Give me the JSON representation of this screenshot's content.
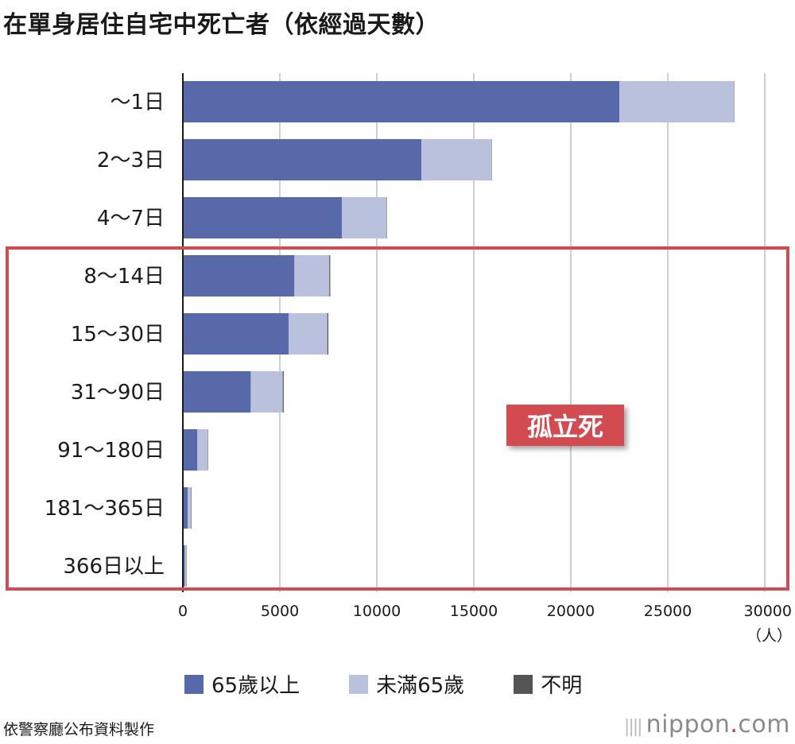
{
  "title": "在單身居住自宅中死亡者（依經過天數）",
  "chart_data": {
    "type": "bar",
    "orientation": "horizontal",
    "stacked": true,
    "title": "在單身居住自宅中死亡者（依經過天數）",
    "categories": [
      "～1日",
      "2～3日",
      "4～7日",
      "8～14日",
      "15～30日",
      "31～90日",
      "91～180日",
      "181～365日",
      "366日以上"
    ],
    "series": [
      {
        "name": "65歲以上",
        "color": "#5769a8",
        "values": [
          22500,
          12300,
          8200,
          5750,
          5450,
          3500,
          750,
          250,
          100
        ]
      },
      {
        "name": "未滿65歲",
        "color": "#b9c1dd",
        "values": [
          5900,
          3600,
          2300,
          1800,
          2000,
          1650,
          530,
          180,
          70
        ]
      },
      {
        "name": "不明",
        "color": "#555555",
        "values": [
          20,
          20,
          20,
          50,
          50,
          50,
          10,
          5,
          5
        ]
      }
    ],
    "x_ticks": [
      "0",
      "5000",
      "10000",
      "15000",
      "20000",
      "25000",
      "30000"
    ],
    "xlim": [
      0,
      30000
    ],
    "unit_label": "（人）",
    "grid": true,
    "legend_position": "bottom",
    "annotation": {
      "label": "孤立死",
      "highlight_color": "#d24b50",
      "covers_categories": [
        "8～14日",
        "15～30日",
        "31～90日",
        "91～180日",
        "181～365日",
        "366日以上"
      ]
    }
  },
  "source": "依警察廳公布資料製作",
  "brand": {
    "name": "nippon",
    "dot": ".",
    "suffix": "com",
    "bars_icon": "||||"
  }
}
